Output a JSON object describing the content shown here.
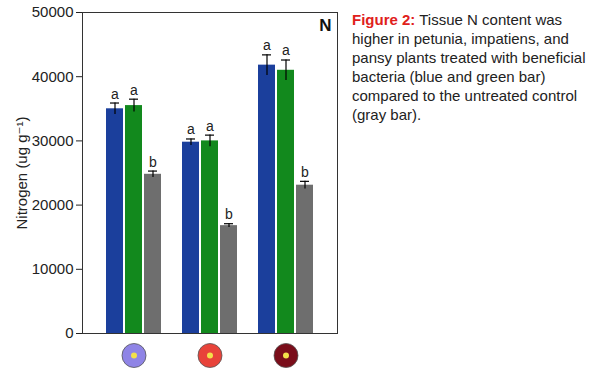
{
  "chart_data": {
    "type": "bar",
    "panel_label": "N",
    "y_label": "Nitrogen (ug g⁻¹)",
    "caption": {
      "label": "Figure 2:",
      "text": "Tissue N content was higher in petunia, impatiens, and pansy plants treated with beneficial bacteria (blue and green bar) compared to the untreated control (gray bar)."
    },
    "categories": [
      null,
      null,
      null
    ],
    "series": [
      {
        "color": "#1b3f9c",
        "values": [
          35000,
          29800,
          41800
        ],
        "errors": [
          900,
          500,
          1600
        ],
        "letters": [
          "a",
          "a",
          "a"
        ]
      },
      {
        "color": "#12891d",
        "values": [
          35500,
          30000,
          41000
        ],
        "errors": [
          1000,
          900,
          1600
        ],
        "letters": [
          "a",
          "a",
          "a"
        ]
      },
      {
        "color": "#6e6e6e",
        "values": [
          24800,
          16800,
          23100
        ],
        "errors": [
          500,
          300,
          600
        ],
        "letters": [
          "b",
          "b",
          "b"
        ]
      }
    ],
    "ylim": [
      0,
      50000
    ],
    "yticks": [
      0,
      10000,
      20000,
      30000,
      40000,
      50000
    ],
    "grid": false,
    "tick_labels": "y"
  }
}
